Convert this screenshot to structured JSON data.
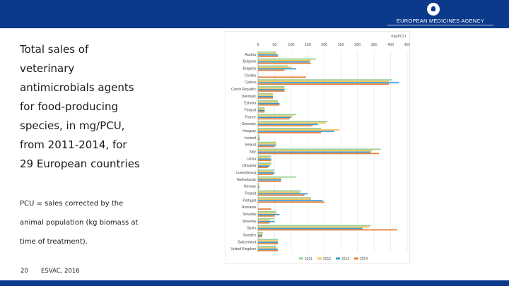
{
  "brand": {
    "name": "EUROPEAN MEDICINES AGENCY"
  },
  "left_panel": {
    "heading_lines": [
      "Total sales of",
      "veterinary",
      "antimicrobials agents",
      "for food-producing",
      "species, in mg/PCU,",
      "from 2011-2014, for",
      "29 European countries"
    ],
    "note_lines": [
      "PCU = sales corrected by the",
      "animal population (kg biomass at",
      "time of treatment)."
    ]
  },
  "footer": {
    "page_number": "20",
    "source": "ESVAC, 2016"
  },
  "colors": {
    "brand_bar": "#0b3a8c",
    "s2011": "#9bd09a",
    "s2012": "#f2c65a",
    "s2013": "#3a9bd0",
    "s2014": "#e8803a"
  },
  "chart_data": {
    "type": "bar",
    "orientation": "horizontal",
    "unit_label": "mg/PCU",
    "xlim": [
      0,
      450
    ],
    "ticks": [
      0,
      50,
      100,
      150,
      200,
      250,
      300,
      350,
      400,
      450
    ],
    "grid": true,
    "legend_position": "bottom",
    "categories": [
      "Austria",
      "Belgium",
      "Bulgaria",
      "Croatia",
      "Cyprus",
      "Czech Republic",
      "Denmark",
      "Estonia",
      "Finland",
      "France",
      "Germany",
      "Hungary",
      "Iceland",
      "Ireland",
      "Italy",
      "Latvia",
      "Lithuania",
      "Luxembourg",
      "Netherlands",
      "Norway",
      "Poland",
      "Portugal",
      "Romania",
      "Slovakia",
      "Slovenia",
      "Spain",
      "Sweden",
      "Switzerland",
      "United Kingdom"
    ],
    "series": [
      {
        "name": "2011",
        "color": "#9bd09a",
        "values": [
          55,
          175,
          90,
          null,
          405,
          80,
          45,
          60,
          20,
          115,
          210,
          190,
          5,
          55,
          370,
          40,
          40,
          50,
          115,
          4,
          130,
          160,
          null,
          55,
          50,
          340,
          15,
          60,
          55
        ]
      },
      {
        "name": "2012",
        "color": "#f2c65a",
        "values": [
          55,
          160,
          100,
          null,
          395,
          80,
          45,
          60,
          20,
          105,
          205,
          245,
          5,
          55,
          345,
          35,
          40,
          45,
          70,
          4,
          125,
          160,
          null,
          55,
          35,
          335,
          15,
          60,
          55
        ]
      },
      {
        "name": "2013",
        "color": "#3a9bd0",
        "values": [
          60,
          155,
          115,
          null,
          425,
          80,
          45,
          65,
          20,
          100,
          180,
          230,
          5,
          55,
          340,
          40,
          35,
          50,
          70,
          4,
          150,
          195,
          null,
          65,
          50,
          315,
          13,
          60,
          60
        ]
      },
      {
        "name": "2014",
        "color": "#e8803a",
        "values": [
          60,
          160,
          80,
          145,
          395,
          80,
          45,
          65,
          20,
          95,
          165,
          190,
          5,
          50,
          365,
          40,
          30,
          45,
          70,
          4,
          140,
          200,
          40,
          50,
          35,
          420,
          12,
          60,
          60
        ]
      }
    ]
  }
}
